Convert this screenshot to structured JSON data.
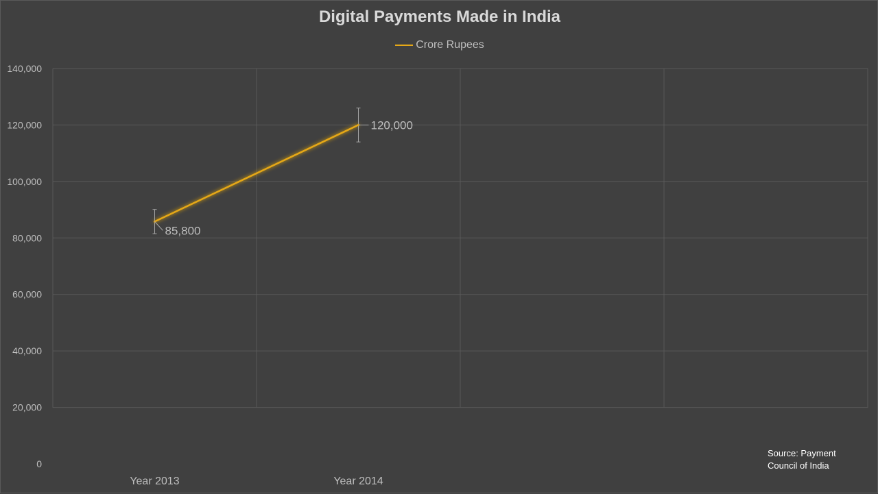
{
  "chart_data": {
    "type": "line",
    "title": "Digital Payments Made in India",
    "categories": [
      "Year 2013",
      "Year 2014"
    ],
    "series": [
      {
        "name": "Crore Rupees",
        "values": [
          85800,
          120000
        ],
        "labels": [
          "85,800",
          "120,000"
        ],
        "color": "#e6a817"
      }
    ],
    "ylim": [
      0,
      140000
    ],
    "y_ticks": [
      0,
      20000,
      40000,
      60000,
      80000,
      100000,
      120000,
      140000
    ],
    "y_tick_labels": [
      "0",
      "20,000",
      "40,000",
      "60,000",
      "80,000",
      "100,000",
      "120,000",
      "140,000"
    ],
    "error_bars": true,
    "grid": true,
    "legend_position": "top-center",
    "source_note": "Source:  Payment Council of India"
  }
}
